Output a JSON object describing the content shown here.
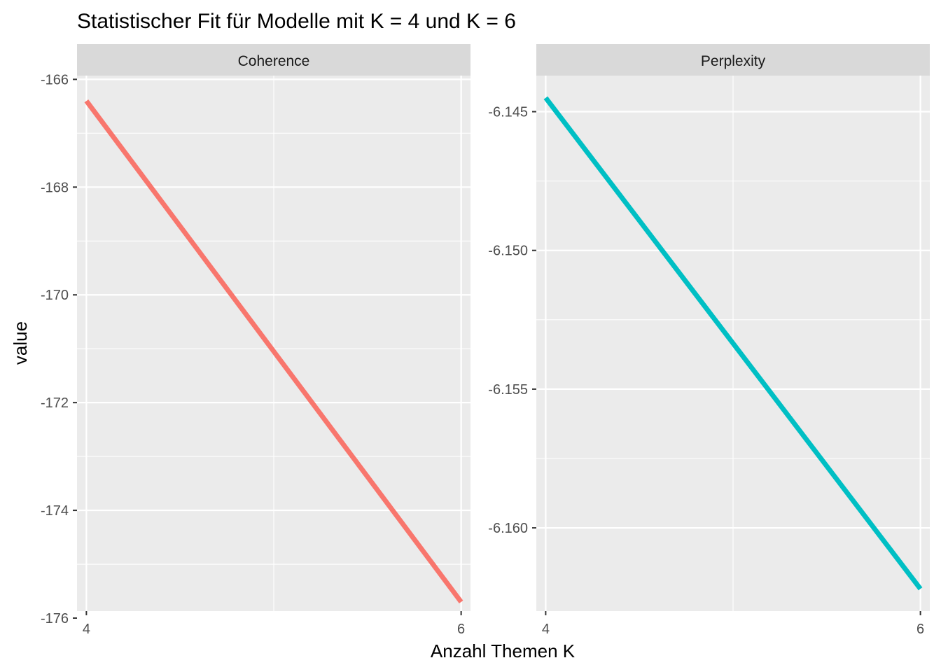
{
  "title": "Statistischer Fit für Modelle mit K = 4 und K = 6",
  "chart_data": [
    {
      "type": "line",
      "facet": "Coherence",
      "x": [
        4,
        6
      ],
      "series": [
        {
          "values": [
            -166.4,
            -175.7
          ],
          "color": "#F8766D"
        }
      ],
      "xlabel": "Anzahl Themen K",
      "ylabel": "value",
      "xlim": [
        3.95,
        6.05
      ],
      "ylim": [
        -175.87,
        -165.93
      ],
      "x_ticks": [
        4,
        6
      ],
      "y_ticks": [
        -166,
        -168,
        -170,
        -172,
        -174,
        -176
      ],
      "x_tick_labels": [
        "4",
        "6"
      ],
      "y_tick_labels": [
        "-166",
        "-168",
        "-170",
        "-172",
        "-174",
        "-176"
      ],
      "grid": true,
      "panel_background": "#EBEBEB"
    },
    {
      "type": "line",
      "facet": "Perplexity",
      "x": [
        4,
        6
      ],
      "series": [
        {
          "values": [
            -6.1445,
            -6.1622
          ],
          "color": "#00BFC4"
        }
      ],
      "xlabel": "Anzahl Themen K",
      "ylabel": "value",
      "xlim": [
        3.95,
        6.05
      ],
      "ylim": [
        -6.163,
        -6.1437
      ],
      "x_ticks": [
        4,
        6
      ],
      "y_ticks": [
        -6.145,
        -6.15,
        -6.155,
        -6.16
      ],
      "x_tick_labels": [
        "4",
        "6"
      ],
      "y_tick_labels": [
        "-6.145",
        "-6.150",
        "-6.155",
        "-6.160"
      ],
      "grid": true,
      "panel_background": "#EBEBEB"
    }
  ],
  "strip_background": "#D9D9D9",
  "grid_color": "#FFFFFF"
}
